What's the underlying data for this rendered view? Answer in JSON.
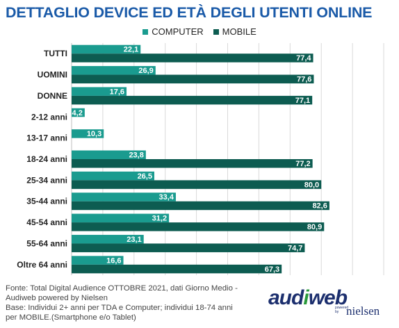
{
  "title": "DETTAGLIO DEVICE ED ETÀ DEGLI UTENTI ONLINE",
  "colors": {
    "title": "#1a5aa8",
    "computer": "#1a9b8f",
    "mobile": "#0d5c51"
  },
  "chart_data": {
    "type": "bar",
    "orientation": "horizontal",
    "categories": [
      "TUTTI",
      "UOMINI",
      "DONNE",
      "2-12 anni",
      "13-17 anni",
      "18-24 anni",
      "25-34 anni",
      "35-44 anni",
      "45-54 anni",
      "55-64 anni",
      "Oltre 64 anni"
    ],
    "series": [
      {
        "name": "COMPUTER",
        "values": [
          22.1,
          26.9,
          17.6,
          4.2,
          10.3,
          23.8,
          26.5,
          33.4,
          31.2,
          23.1,
          16.6
        ],
        "labels": [
          "22,1",
          "26,9",
          "17,6",
          "4,2",
          "10,3",
          "23,8",
          "26,5",
          "33,4",
          "31,2",
          "23,1",
          "16,6"
        ]
      },
      {
        "name": "MOBILE",
        "values": [
          77.4,
          77.6,
          77.1,
          null,
          null,
          77.2,
          80.0,
          82.6,
          80.9,
          74.7,
          67.3
        ],
        "labels": [
          "77,4",
          "77,6",
          "77,1",
          null,
          null,
          "77,2",
          "80,0",
          "82,6",
          "80,9",
          "74,7",
          "67,3"
        ]
      }
    ],
    "xlim": [
      0,
      100
    ],
    "legend": "top-center",
    "grid": true
  },
  "source": {
    "line1": "Fonte: Total Digital Audience OTTOBRE 2021, dati Giorno Medio -",
    "line2": "Audiweb powered by Nielsen",
    "line3": "Base:  Individui 2+ anni per TDA e Computer; individui 18-74 anni",
    "line4": "per MOBILE.(Smartphone e/o Tablet)"
  },
  "logo": {
    "main_a": "aud",
    "main_b": "i",
    "main_c": "web",
    "powered": "powered by",
    "nielsen": "nielsen"
  }
}
